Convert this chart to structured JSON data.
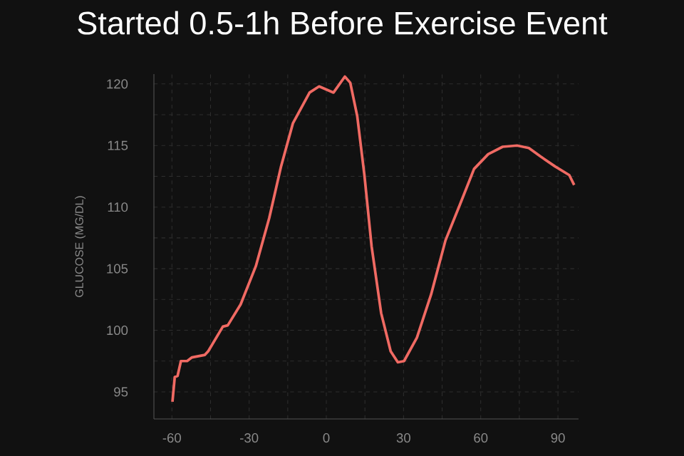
{
  "chart_data": {
    "type": "line",
    "title": "Started 0.5-1h Before Exercise Event",
    "ylabel": "GLUCOSE (MG/DL)",
    "x": [
      -59.8,
      -58.9,
      -57.8,
      -56.5,
      -54.1,
      -52.2,
      -47.2,
      -45.9,
      -40.2,
      -38.3,
      -33.3,
      -27.4,
      -22.2,
      -17.6,
      -13.0,
      -6.5,
      -2.8,
      2.8,
      7.2,
      9.3,
      12.0,
      14.8,
      17.6,
      21.3,
      25.0,
      27.8,
      30.2,
      35.2,
      40.7,
      46.3,
      51.9,
      57.4,
      62.9,
      68.5,
      74.1,
      78.7,
      83.3,
      88.9,
      94.4,
      96.3
    ],
    "series": [
      {
        "color": "#f06a63",
        "values": [
          94.2,
          96.2,
          96.3,
          97.5,
          97.5,
          97.8,
          98.0,
          98.3,
          100.3,
          100.4,
          102.1,
          105.2,
          109.1,
          113.3,
          116.8,
          119.3,
          119.8,
          119.3,
          120.6,
          120.1,
          117.4,
          112.6,
          106.8,
          101.4,
          98.3,
          97.4,
          97.5,
          99.4,
          102.9,
          107.3,
          110.2,
          113.1,
          114.3,
          114.9,
          115.0,
          114.8,
          114.1,
          113.3,
          112.6,
          111.8
        ]
      }
    ],
    "xlim": [
      -67,
      98
    ],
    "ylim": [
      92.8,
      120.8
    ],
    "xticks": [
      -60,
      -30,
      0,
      30,
      60,
      90
    ],
    "yticks": [
      95,
      100,
      105,
      110,
      115,
      120
    ],
    "grid": true,
    "marker": "none",
    "line_style": "solid"
  }
}
